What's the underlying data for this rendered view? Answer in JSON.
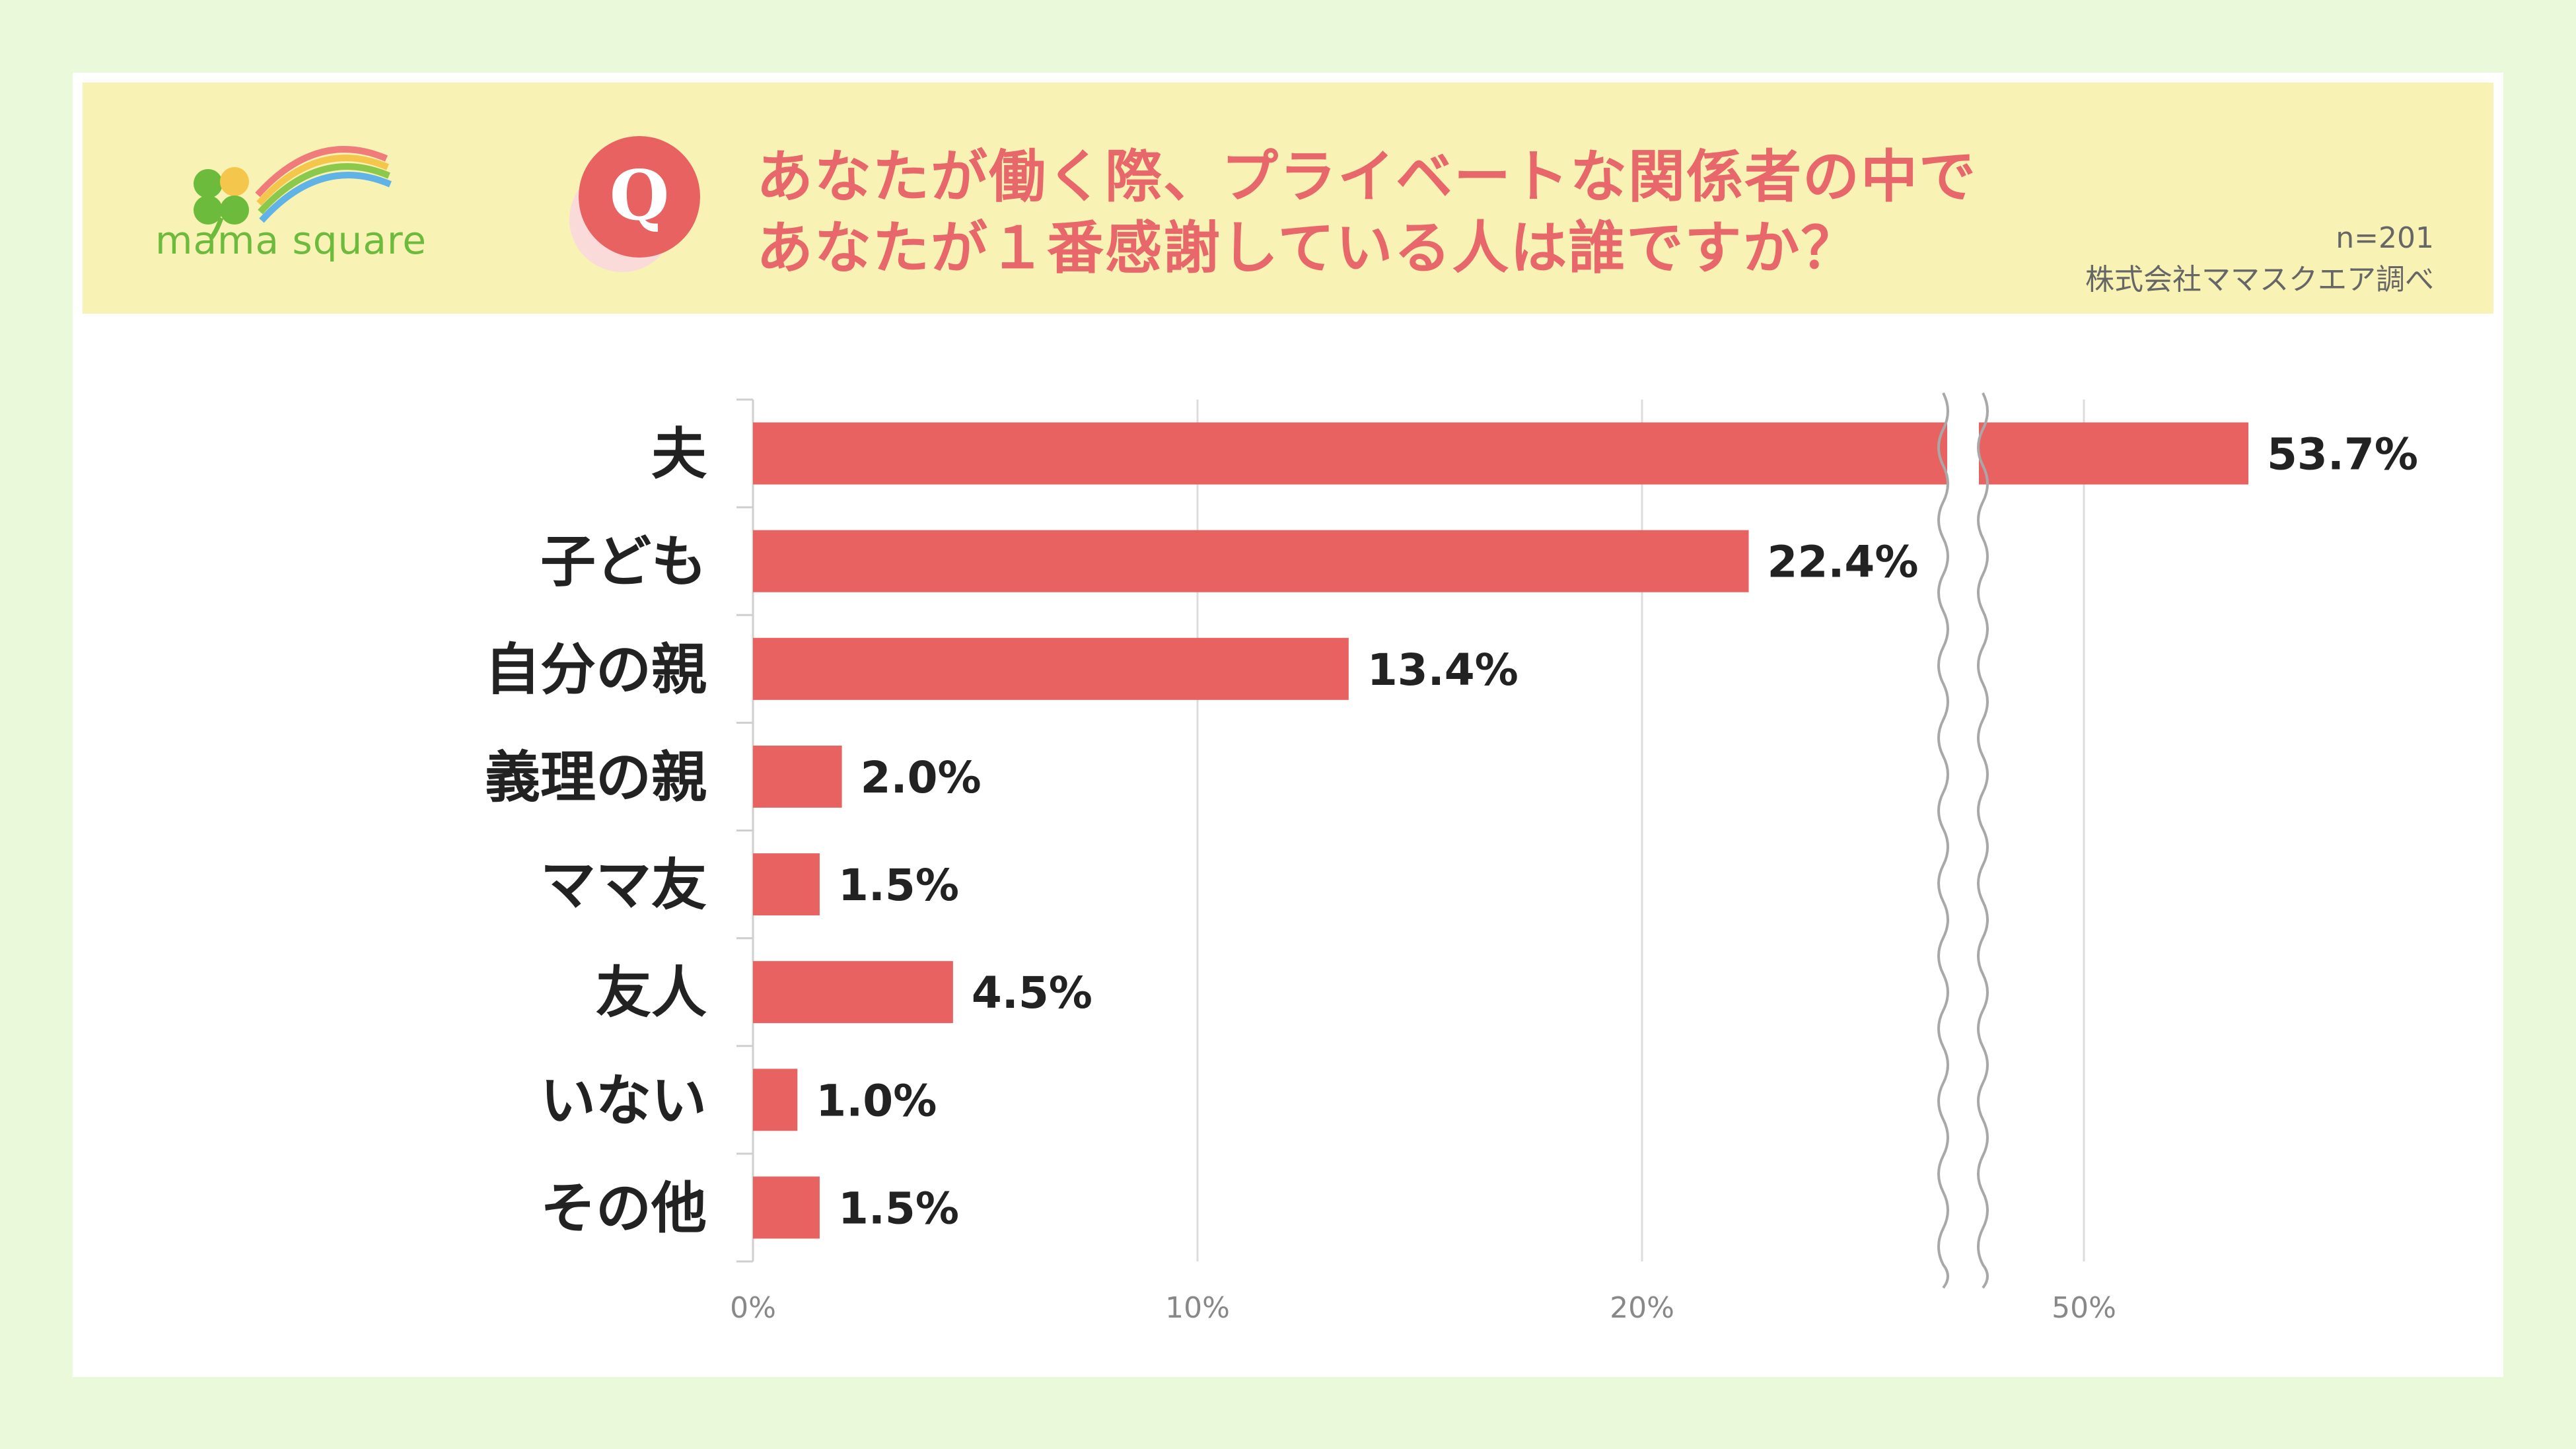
{
  "logo": {
    "text": "mama square"
  },
  "header": {
    "badge": "Q",
    "question_line1": "あなたが働く際、プライベートな関係者の中で",
    "question_line2": "あなたが１番感謝している人は誰ですか？",
    "sample": "n=201",
    "source": "株式会社ママスクエア調べ"
  },
  "colors": {
    "bar": "#e96262",
    "accent_text": "#e8676a",
    "header_bg": "#f8f2b5",
    "page_bg": "#eaf9d9",
    "logo_green": "#6dbb3c"
  },
  "chart_data": {
    "type": "bar",
    "orientation": "horizontal",
    "axis_break": true,
    "categories": [
      "夫",
      "子ども",
      "自分の親",
      "義理の親",
      "ママ友",
      "友人",
      "いない",
      "その他"
    ],
    "values": [
      53.7,
      22.4,
      13.4,
      2.0,
      1.5,
      4.5,
      1.0,
      1.5
    ],
    "value_labels": [
      "53.7%",
      "22.4%",
      "13.4%",
      "2.0%",
      "1.5%",
      "4.5%",
      "1.0%",
      "1.5%"
    ],
    "x_ticks": [
      {
        "value": 0,
        "label": "0%"
      },
      {
        "value": 10,
        "label": "10%"
      },
      {
        "value": 20,
        "label": "20%"
      },
      {
        "value": 50,
        "label": "50%"
      }
    ],
    "grid": true
  }
}
